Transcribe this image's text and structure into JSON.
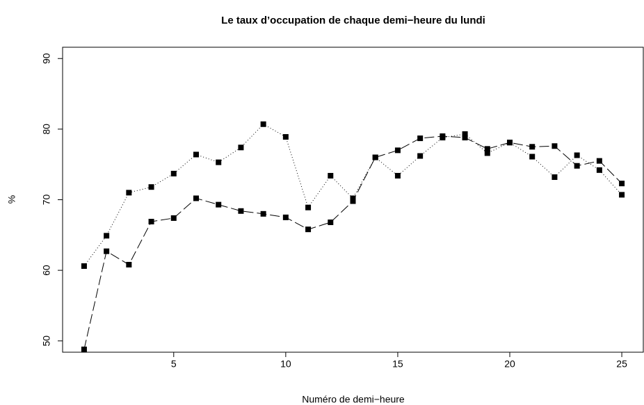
{
  "chart_data": {
    "type": "line",
    "title": "Le taux d’occupation de chaque demi−heure du lundi",
    "xlabel": "Numéro de demi−heure",
    "ylabel": "%",
    "x": [
      1,
      2,
      3,
      4,
      5,
      6,
      7,
      8,
      9,
      10,
      11,
      12,
      13,
      14,
      15,
      16,
      17,
      18,
      19,
      20,
      21,
      22,
      23,
      24,
      25
    ],
    "series": [
      {
        "color": "#000000",
        "line_style": "longdash",
        "marker": "square",
        "values": [
          48.8,
          62.7,
          60.8,
          66.9,
          67.4,
          70.2,
          69.3,
          68.4,
          68.0,
          67.5,
          65.8,
          66.8,
          69.8,
          76.0,
          77.0,
          78.7,
          79.0,
          78.8,
          77.2,
          78.1,
          77.5,
          77.6,
          74.8,
          75.5,
          72.3
        ]
      },
      {
        "color": "#000000",
        "line_style": "dotted",
        "marker": "square",
        "values": [
          60.6,
          64.9,
          71.0,
          71.8,
          73.7,
          76.4,
          75.3,
          77.4,
          80.7,
          78.9,
          68.9,
          73.4,
          70.2,
          76.0,
          73.4,
          76.2,
          78.8,
          79.3,
          76.6,
          78.1,
          76.1,
          73.2,
          76.3,
          74.2,
          70.7
        ]
      }
    ],
    "xlim": [
      0.04,
      25.96
    ],
    "xticks": [
      5,
      10,
      15,
      20,
      25
    ],
    "ylim": [
      48.4,
      91.6
    ],
    "yticks": [
      50,
      60,
      70,
      80,
      90
    ],
    "grid": false
  }
}
